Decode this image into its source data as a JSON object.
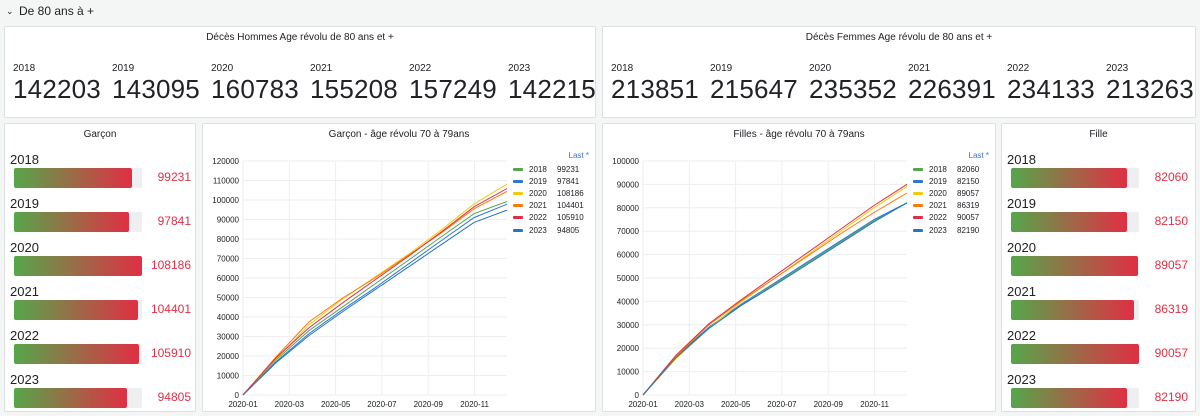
{
  "row": {
    "chevron": "⌄",
    "title": "De 80 ans à +"
  },
  "hommes": {
    "title": "Décès Hommes Age révolu de 80 ans et +",
    "stats": [
      {
        "year": "2018",
        "value": "142203"
      },
      {
        "year": "2019",
        "value": "143095"
      },
      {
        "year": "2020",
        "value": "160783"
      },
      {
        "year": "2021",
        "value": "155208"
      },
      {
        "year": "2022",
        "value": "157249"
      },
      {
        "year": "2023",
        "value": "142215"
      }
    ]
  },
  "femmes": {
    "title": "Décès Femmes Age révolu de 80 ans et +",
    "stats": [
      {
        "year": "2018",
        "value": "213851"
      },
      {
        "year": "2019",
        "value": "215647"
      },
      {
        "year": "2020",
        "value": "235352"
      },
      {
        "year": "2021",
        "value": "226391"
      },
      {
        "year": "2022",
        "value": "234133"
      },
      {
        "year": "2023",
        "value": "213263"
      }
    ]
  },
  "garcon_bars": {
    "title": "Garçon",
    "items": [
      {
        "label": "2018",
        "value": "99231",
        "fraction": 0.92
      },
      {
        "label": "2019",
        "value": "97841",
        "fraction": 0.9
      },
      {
        "label": "2020",
        "value": "108186",
        "fraction": 1.0
      },
      {
        "label": "2021",
        "value": "104401",
        "fraction": 0.97
      },
      {
        "label": "2022",
        "value": "105910",
        "fraction": 0.98
      },
      {
        "label": "2023",
        "value": "94805",
        "fraction": 0.88
      }
    ]
  },
  "fille_bars": {
    "title": "Fille",
    "items": [
      {
        "label": "2018",
        "value": "82060",
        "fraction": 0.91
      },
      {
        "label": "2019",
        "value": "82150",
        "fraction": 0.91
      },
      {
        "label": "2020",
        "value": "89057",
        "fraction": 0.99
      },
      {
        "label": "2021",
        "value": "86319",
        "fraction": 0.96
      },
      {
        "label": "2022",
        "value": "90057",
        "fraction": 1.0
      },
      {
        "label": "2023",
        "value": "82190",
        "fraction": 0.91
      }
    ]
  },
  "legend_header": "Last *",
  "colors": {
    "2018": "#56a64b",
    "2019": "#3274d9",
    "2020": "#f2cc0c",
    "2021": "#ff780a",
    "2022": "#e02f44",
    "2023": "#1f78c1",
    "bar_start": "#56a64b",
    "bar_end": "#e02f44"
  },
  "chart_data": [
    {
      "type": "line",
      "title": "Garçon - âge révolu 70 à 79ans",
      "x_ticks": [
        "2020-01",
        "2020-03",
        "2020-05",
        "2020-07",
        "2020-09",
        "2020-11"
      ],
      "y_ticks": [
        "0",
        "10000",
        "20000",
        "30000",
        "40000",
        "50000",
        "60000",
        "70000",
        "80000",
        "90000",
        "100000",
        "110000",
        "120000"
      ],
      "ylim": [
        0,
        120000
      ],
      "legend_placement": "top-right",
      "grid": true,
      "series": [
        {
          "name": "2018",
          "last": "99231",
          "values": [
            0,
            18000,
            33000,
            45000,
            57000,
            69000,
            81000,
            93000,
            99231
          ]
        },
        {
          "name": "2019",
          "last": "97841",
          "values": [
            0,
            17000,
            31500,
            43500,
            55000,
            67000,
            79000,
            91000,
            97841
          ]
        },
        {
          "name": "2020",
          "last": "108186",
          "values": [
            0,
            18500,
            36000,
            49000,
            60500,
            72000,
            84500,
            98000,
            108186
          ]
        },
        {
          "name": "2021",
          "last": "104401",
          "values": [
            0,
            19500,
            37500,
            49500,
            60000,
            71500,
            83000,
            95500,
            104401
          ]
        },
        {
          "name": "2022",
          "last": "105910",
          "values": [
            0,
            19000,
            34500,
            47000,
            59000,
            71000,
            83500,
            96500,
            105910
          ]
        },
        {
          "name": "2023",
          "last": "94805",
          "values": [
            0,
            16500,
            30500,
            42500,
            54000,
            65500,
            77000,
            88500,
            94805
          ]
        }
      ]
    },
    {
      "type": "line",
      "title": "Filles - âge révolu 70 à 79ans",
      "x_ticks": [
        "2020-01",
        "2020-03",
        "2020-05",
        "2020-07",
        "2020-09",
        "2020-11"
      ],
      "y_ticks": [
        "0",
        "10000",
        "20000",
        "30000",
        "40000",
        "50000",
        "60000",
        "70000",
        "80000",
        "90000",
        "100000"
      ],
      "ylim": [
        0,
        100000
      ],
      "legend_placement": "top-right",
      "grid": true,
      "series": [
        {
          "name": "2018",
          "last": "82060",
          "values": [
            0,
            16000,
            28500,
            38500,
            47500,
            56500,
            65500,
            74500,
            82060
          ]
        },
        {
          "name": "2019",
          "last": "82150",
          "values": [
            0,
            16500,
            29000,
            39000,
            48000,
            57000,
            66000,
            75000,
            82150
          ]
        },
        {
          "name": "2020",
          "last": "89057",
          "values": [
            0,
            15500,
            28500,
            40000,
            50000,
            60000,
            70000,
            80000,
            89057
          ]
        },
        {
          "name": "2021",
          "last": "86319",
          "values": [
            0,
            16500,
            30000,
            40500,
            50000,
            59500,
            69000,
            78000,
            86319
          ]
        },
        {
          "name": "2022",
          "last": "90057",
          "values": [
            0,
            17000,
            30500,
            41000,
            51000,
            61000,
            71000,
            81000,
            90057
          ]
        },
        {
          "name": "2023",
          "last": "82190",
          "values": [
            0,
            16000,
            28500,
            38500,
            47000,
            56000,
            65000,
            74000,
            82190
          ]
        }
      ]
    }
  ]
}
